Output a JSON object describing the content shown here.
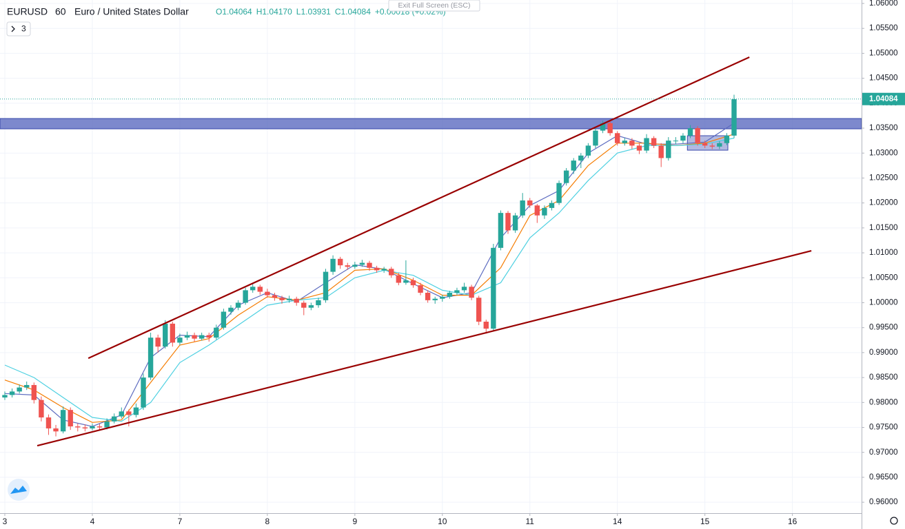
{
  "chart_data": {
    "type": "candlestick",
    "symbol": "EURUSD",
    "interval": "60",
    "description": "Euro / United States Dollar",
    "ohlc_text": [
      "O1.04064",
      "H1.04170",
      "L1.03931",
      "C1.04084",
      "+0.00018 (+0.02%)"
    ],
    "up_color": "#26a69a",
    "down_color": "#ef5350",
    "grid": true,
    "xlim": [
      -1.32,
      234.97
    ],
    "ylim": [
      0.95781,
      1.06069
    ],
    "xticks": [
      {
        "value": 0,
        "label": "3"
      },
      {
        "value": 24,
        "label": "4"
      },
      {
        "value": 48,
        "label": "7"
      },
      {
        "value": 72,
        "label": "8"
      },
      {
        "value": 96,
        "label": "9"
      },
      {
        "value": 120,
        "label": "10"
      },
      {
        "value": 144,
        "label": "11"
      },
      {
        "value": 168,
        "label": "14"
      },
      {
        "value": 192,
        "label": "15"
      },
      {
        "value": 216,
        "label": "16"
      }
    ],
    "yticks": [
      {
        "value": 0.96,
        "label": "0.96000"
      },
      {
        "value": 0.965,
        "label": "0.96500"
      },
      {
        "value": 0.97,
        "label": "0.97000"
      },
      {
        "value": 0.975,
        "label": "0.97500"
      },
      {
        "value": 0.98,
        "label": "0.98000"
      },
      {
        "value": 0.985,
        "label": "0.98500"
      },
      {
        "value": 0.99,
        "label": "0.99000"
      },
      {
        "value": 0.995,
        "label": "0.99500"
      },
      {
        "value": 1.0,
        "label": "1.00000"
      },
      {
        "value": 1.005,
        "label": "1.00500"
      },
      {
        "value": 1.01,
        "label": "1.01000"
      },
      {
        "value": 1.015,
        "label": "1.01500"
      },
      {
        "value": 1.02,
        "label": "1.02000"
      },
      {
        "value": 1.025,
        "label": "1.02500"
      },
      {
        "value": 1.03,
        "label": "1.03000"
      },
      {
        "value": 1.035,
        "label": "1.03500"
      },
      {
        "value": 1.04,
        "label": "1.04000"
      },
      {
        "value": 1.045,
        "label": "1.04500"
      },
      {
        "value": 1.05,
        "label": "1.05000"
      },
      {
        "value": 1.055,
        "label": "1.05500"
      },
      {
        "value": 1.06,
        "label": "1.06000"
      }
    ],
    "x": [
      0,
      2,
      4,
      6,
      8,
      10,
      12,
      14,
      16,
      18,
      20,
      22,
      24,
      26,
      28,
      30,
      32,
      34,
      36,
      38,
      40,
      42,
      44,
      46,
      48,
      50,
      52,
      54,
      56,
      58,
      60,
      62,
      64,
      66,
      68,
      70,
      72,
      74,
      76,
      78,
      80,
      82,
      84,
      86,
      88,
      90,
      92,
      94,
      96,
      98,
      100,
      102,
      104,
      106,
      108,
      110,
      112,
      114,
      116,
      118,
      120,
      122,
      124,
      126,
      128,
      130,
      132,
      134,
      136,
      138,
      140,
      142,
      144,
      146,
      148,
      150,
      152,
      154,
      156,
      158,
      160,
      162,
      164,
      166,
      168,
      170,
      172,
      174,
      176,
      178,
      180,
      182,
      184,
      186,
      188,
      190,
      192,
      194,
      196,
      198,
      200
    ],
    "candles": [
      [
        0.981,
        0.9822,
        0.9805,
        0.9815
      ],
      [
        0.9815,
        0.9828,
        0.981,
        0.9822
      ],
      [
        0.9822,
        0.9836,
        0.9818,
        0.983
      ],
      [
        0.983,
        0.9842,
        0.9825,
        0.9835
      ],
      [
        0.9835,
        0.984,
        0.9798,
        0.9805
      ],
      [
        0.9805,
        0.9812,
        0.9762,
        0.977
      ],
      [
        0.977,
        0.9776,
        0.9735,
        0.9748
      ],
      [
        0.9748,
        0.9755,
        0.9732,
        0.9742
      ],
      [
        0.9742,
        0.9792,
        0.9738,
        0.9785
      ],
      [
        0.9785,
        0.979,
        0.9745,
        0.9752
      ],
      [
        0.9752,
        0.9758,
        0.9742,
        0.975
      ],
      [
        0.975,
        0.9756,
        0.9742,
        0.9748
      ],
      [
        0.9748,
        0.9758,
        0.9744,
        0.9752
      ],
      [
        0.9752,
        0.9757,
        0.9745,
        0.975
      ],
      [
        0.975,
        0.9768,
        0.9746,
        0.9762
      ],
      [
        0.9762,
        0.9778,
        0.9758,
        0.9772
      ],
      [
        0.9772,
        0.979,
        0.9768,
        0.9782
      ],
      [
        0.9782,
        0.9786,
        0.9752,
        0.9775
      ],
      [
        0.9775,
        0.9798,
        0.977,
        0.979
      ],
      [
        0.979,
        0.9858,
        0.9785,
        0.985
      ],
      [
        0.985,
        0.994,
        0.9845,
        0.993
      ],
      [
        0.993,
        0.9936,
        0.99,
        0.9912
      ],
      [
        0.9912,
        0.9965,
        0.9908,
        0.9958
      ],
      [
        0.9958,
        0.9962,
        0.9912,
        0.992
      ],
      [
        0.992,
        0.9938,
        0.9915,
        0.993
      ],
      [
        0.993,
        0.9942,
        0.9925,
        0.9935
      ],
      [
        0.9935,
        0.994,
        0.9922,
        0.9928
      ],
      [
        0.9928,
        0.994,
        0.9924,
        0.9935
      ],
      [
        0.9935,
        0.994,
        0.9922,
        0.993
      ],
      [
        0.993,
        0.9956,
        0.9926,
        0.995
      ],
      [
        0.995,
        0.9988,
        0.9946,
        0.9982
      ],
      [
        0.9982,
        0.9995,
        0.9976,
        0.999
      ],
      [
        0.999,
        1.0005,
        0.9985,
        1.0
      ],
      [
        1.0,
        1.003,
        0.9996,
        1.0025
      ],
      [
        1.0025,
        1.0038,
        1.002,
        1.0032
      ],
      [
        1.0032,
        1.0036,
        1.0016,
        1.0022
      ],
      [
        1.0022,
        1.0028,
        1.001,
        1.0015
      ],
      [
        1.0015,
        1.002,
        1.0004,
        1.001
      ],
      [
        1.001,
        1.0014,
        0.9998,
        1.0005
      ],
      [
        1.0005,
        1.0014,
        1.0,
        1.0008
      ],
      [
        1.0008,
        1.0012,
        0.9994,
        1.0
      ],
      [
        1.0,
        1.0004,
        0.9975,
        0.999
      ],
      [
        0.999,
        1.0,
        0.9985,
        0.9995
      ],
      [
        0.9995,
        1.001,
        0.999,
        1.0005
      ],
      [
        1.0005,
        1.0068,
        1.0,
        1.0062
      ],
      [
        1.0062,
        1.0095,
        1.0056,
        1.0088
      ],
      [
        1.0088,
        1.0092,
        1.0068,
        1.0075
      ],
      [
        1.0075,
        1.008,
        1.0066,
        1.0072
      ],
      [
        1.0072,
        1.0082,
        1.0068,
        1.0076
      ],
      [
        1.0076,
        1.0086,
        1.0072,
        1.008
      ],
      [
        1.008,
        1.0084,
        1.0064,
        1.007
      ],
      [
        1.007,
        1.0074,
        1.006,
        1.0065
      ],
      [
        1.0065,
        1.0072,
        1.006,
        1.0068
      ],
      [
        1.0068,
        1.0072,
        1.005,
        1.0055
      ],
      [
        1.0055,
        1.006,
        1.0035,
        1.004
      ],
      [
        1.004,
        1.0085,
        1.0036,
        1.0045
      ],
      [
        1.0045,
        1.005,
        1.003,
        1.0035
      ],
      [
        1.0035,
        1.004,
        1.0015,
        1.002
      ],
      [
        1.002,
        1.0025,
        1.0,
        1.0005
      ],
      [
        1.0005,
        1.0012,
        0.9998,
        1.0008
      ],
      [
        1.0008,
        1.0016,
        1.0002,
        1.0012
      ],
      [
        1.0012,
        1.0024,
        1.0008,
        1.002
      ],
      [
        1.002,
        1.003,
        1.0015,
        1.0025
      ],
      [
        1.0025,
        1.004,
        1.002,
        1.0032
      ],
      [
        1.0032,
        1.0036,
        1.0005,
        1.001
      ],
      [
        1.001,
        1.0014,
        0.9955,
        0.9962
      ],
      [
        0.9962,
        0.9966,
        0.9938,
        0.9948
      ],
      [
        0.9948,
        1.0118,
        0.9944,
        1.011
      ],
      [
        1.011,
        1.0185,
        1.0105,
        1.018
      ],
      [
        1.018,
        1.0184,
        1.0138,
        1.0145
      ],
      [
        1.0145,
        1.018,
        1.014,
        1.0175
      ],
      [
        1.0175,
        1.022,
        1.017,
        1.0205
      ],
      [
        1.0205,
        1.021,
        1.019,
        1.0195
      ],
      [
        1.0195,
        1.0198,
        1.016,
        1.0175
      ],
      [
        1.0175,
        1.0195,
        1.0168,
        1.019
      ],
      [
        1.019,
        1.0205,
        1.0185,
        1.02
      ],
      [
        1.02,
        1.0245,
        1.0196,
        1.024
      ],
      [
        1.024,
        1.027,
        1.0235,
        1.0265
      ],
      [
        1.0265,
        1.029,
        1.0258,
        1.0285
      ],
      [
        1.0285,
        1.03,
        1.027,
        1.0295
      ],
      [
        1.0295,
        1.032,
        1.029,
        1.0315
      ],
      [
        1.0315,
        1.035,
        1.031,
        1.0345
      ],
      [
        1.0345,
        1.0365,
        1.034,
        1.036
      ],
      [
        1.036,
        1.0364,
        1.0335,
        1.034
      ],
      [
        1.034,
        1.0344,
        1.0315,
        1.032
      ],
      [
        1.032,
        1.033,
        1.0315,
        1.0325
      ],
      [
        1.0325,
        1.033,
        1.0308,
        1.0315
      ],
      [
        1.0315,
        1.032,
        1.0298,
        1.0305
      ],
      [
        1.0305,
        1.0338,
        1.03,
        1.033
      ],
      [
        1.033,
        1.0334,
        1.031,
        1.0315
      ],
      [
        1.0315,
        1.032,
        1.0272,
        1.029
      ],
      [
        1.029,
        1.0332,
        1.0285,
        1.0325
      ],
      [
        1.0325,
        1.0332,
        1.0318,
        1.0325
      ],
      [
        1.0325,
        1.034,
        1.032,
        1.0335
      ],
      [
        1.0335,
        1.0356,
        1.033,
        1.035
      ],
      [
        1.035,
        1.0354,
        1.0315,
        1.032
      ],
      [
        1.032,
        1.0325,
        1.031,
        1.0315
      ],
      [
        1.0315,
        1.032,
        1.0308,
        1.0313
      ],
      [
        1.0313,
        1.0324,
        1.0308,
        1.032
      ],
      [
        1.032,
        1.034,
        1.0316,
        1.0335
      ],
      [
        1.0335,
        1.0417,
        1.033,
        1.0408
      ]
    ],
    "ma_x": [
      0,
      8,
      16,
      24,
      32,
      40,
      48,
      56,
      64,
      72,
      80,
      88,
      96,
      104,
      112,
      120,
      128,
      136,
      144,
      152,
      160,
      168,
      176,
      184,
      192,
      200
    ],
    "moving_averages": [
      {
        "color": "#5c6bc0",
        "values": [
          0.9818,
          0.9815,
          0.9765,
          0.9752,
          0.9775,
          0.989,
          0.9935,
          0.9932,
          0.9995,
          1.002,
          1.0002,
          1.004,
          1.0076,
          1.0067,
          1.0038,
          1.001,
          1.002,
          1.013,
          1.0195,
          1.0225,
          1.03,
          1.0335,
          1.0318,
          1.0318,
          1.0322,
          1.036
        ]
      },
      {
        "color": "#f57c00",
        "values": [
          0.9845,
          0.9825,
          0.979,
          0.976,
          0.9765,
          0.984,
          0.9915,
          0.9928,
          0.9975,
          1.0012,
          1.0005,
          1.002,
          1.0065,
          1.0068,
          1.0045,
          1.0015,
          1.0015,
          1.007,
          1.0175,
          1.0205,
          1.0275,
          1.032,
          1.032,
          1.0315,
          1.032,
          1.0338
        ]
      },
      {
        "color": "#4dd0e1",
        "values": [
          0.9875,
          0.985,
          0.981,
          0.977,
          0.9762,
          0.98,
          0.988,
          0.9915,
          0.9955,
          0.9995,
          1.0005,
          1.001,
          1.005,
          1.0065,
          1.0055,
          1.0025,
          1.0015,
          1.004,
          1.013,
          1.018,
          1.0245,
          1.03,
          1.0315,
          1.0315,
          1.0318,
          1.033
        ]
      }
    ],
    "trendlines": [
      {
        "color": "#990000",
        "x": [
          22.9,
          204.2
        ],
        "y": [
          0.98887,
          1.04923
        ]
      },
      {
        "color": "#990000",
        "x": [
          8.9,
          221.2
        ],
        "y": [
          0.97133,
          1.01041
        ]
      }
    ],
    "zones": [
      {
        "color": "#5c6bc0",
        "x": [
          -1.32,
          234.97
        ],
        "y": [
          1.03486,
          1.03693
        ]
      },
      {
        "color": "#9fa8da",
        "x": [
          187.2,
          198.3
        ],
        "y": [
          1.03058,
          1.03348
        ]
      }
    ],
    "last_price": {
      "value": 1.04084,
      "label": "1.04084"
    }
  },
  "ui": {
    "exit_fullscreen": "Exit Full Screen (ESC)",
    "indicator_count": "3"
  }
}
